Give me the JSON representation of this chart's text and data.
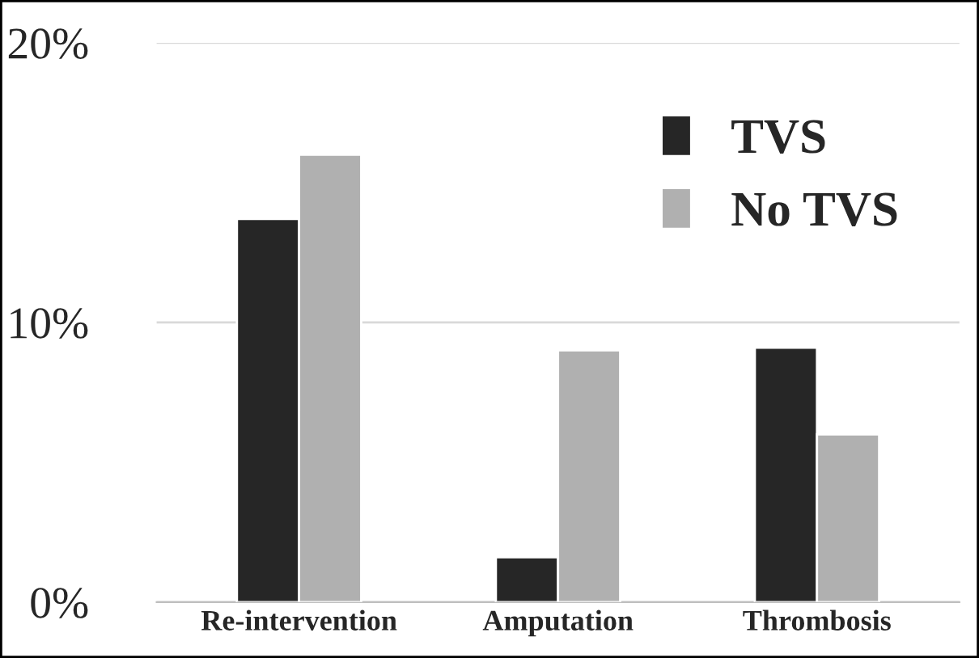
{
  "chart_data": {
    "type": "bar",
    "categories": [
      "Re-intervention",
      "Amputation",
      "Thrombosis"
    ],
    "series": [
      {
        "name": "TVS",
        "color": "#262626",
        "values": [
          13.7,
          1.6,
          9.1
        ]
      },
      {
        "name": "No TVS",
        "color": "#b0b0b0",
        "values": [
          16.0,
          9.0,
          6.0
        ]
      }
    ],
    "ylim": [
      0,
      20
    ],
    "yticks": [
      {
        "value": 0,
        "label": "0%"
      },
      {
        "value": 10,
        "label": "10%"
      },
      {
        "value": 20,
        "label": "20%"
      }
    ],
    "grid": "y",
    "legend": "top right"
  }
}
